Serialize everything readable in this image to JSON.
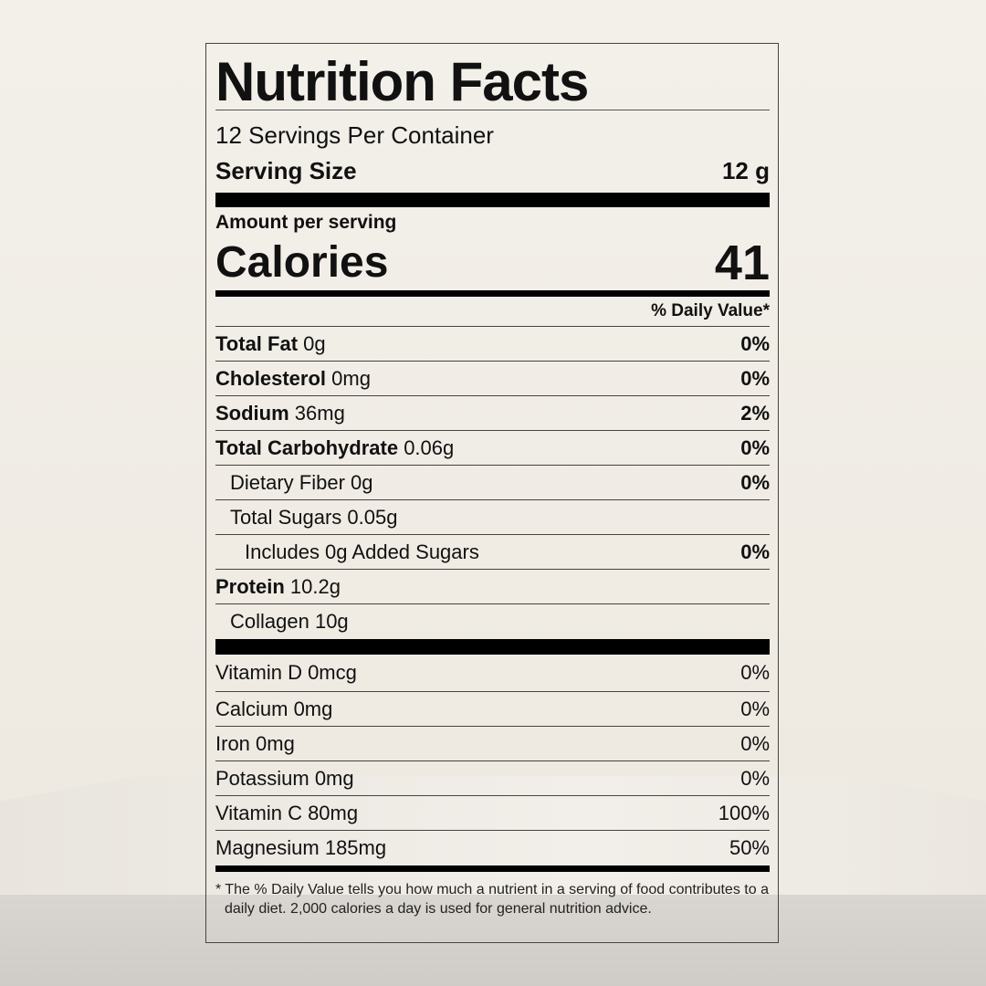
{
  "title": "Nutrition Facts",
  "servings_per_container": "12 Servings Per Container",
  "serving_size": {
    "label": "Serving Size",
    "value": "12 g"
  },
  "amount_per_serving": "Amount per serving",
  "calories": {
    "label": "Calories",
    "value": "41"
  },
  "daily_value_header": "% Daily Value*",
  "nutrients": [
    {
      "name": "Total Fat",
      "amount": "0g",
      "dv": "0%"
    },
    {
      "name": "Cholesterol",
      "amount": "0mg",
      "dv": "0%"
    },
    {
      "name": "Sodium",
      "amount": "36mg",
      "dv": "2%"
    },
    {
      "name": "Total Carbohydrate",
      "amount": "0.06g",
      "dv": "0%"
    },
    {
      "name": "Dietary Fiber 0g",
      "dv": "0%"
    },
    {
      "name": "Total Sugars 0.05g",
      "dv": ""
    },
    {
      "name": "Includes 0g Added Sugars",
      "dv": "0%"
    },
    {
      "name": "Protein",
      "amount": "10.2g",
      "dv": ""
    },
    {
      "name": "Collagen 10g",
      "dv": ""
    }
  ],
  "vitamins": [
    {
      "name": "Vitamin D 0mcg",
      "dv": "0%"
    },
    {
      "name": "Calcium 0mg",
      "dv": "0%"
    },
    {
      "name": "Iron 0mg",
      "dv": "0%"
    },
    {
      "name": "Potassium 0mg",
      "dv": "0%"
    },
    {
      "name": "Vitamin C 80mg",
      "dv": "100%"
    },
    {
      "name": "Magnesium 185mg",
      "dv": "50%"
    }
  ],
  "footnote": "* The % Daily Value tells you how much a nutrient in a serving of food contributes to a daily diet. 2,000 calories a day is used for general nutrition advice."
}
